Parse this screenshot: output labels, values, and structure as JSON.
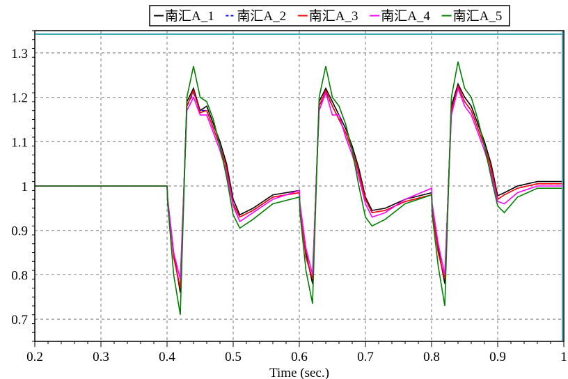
{
  "chart_data": {
    "type": "line",
    "title": "",
    "xlabel": "Time (sec.)",
    "ylabel": "",
    "xlim": [
      0.2,
      1.0
    ],
    "ylim": [
      0.65,
      1.35
    ],
    "xticks": [
      0.2,
      0.3,
      0.4,
      0.5,
      0.6,
      0.7,
      0.8,
      0.9,
      1.0
    ],
    "xtick_labels": [
      "0.2",
      "0.3",
      "0.4",
      "0.5",
      "0.6",
      "0.7",
      "0.8",
      "0.9",
      "1"
    ],
    "yticks": [
      0.7,
      0.8,
      0.9,
      1.0,
      1.1,
      1.2,
      1.3
    ],
    "ytick_labels": [
      "0.7",
      "0.8",
      "0.9",
      "1",
      "1.1",
      "1.2",
      "1.3"
    ],
    "grid": true,
    "legend_position": "top-right",
    "series": [
      {
        "name": "南汇A_1",
        "color": "#000000",
        "dash": "solid",
        "x": [
          0.2,
          0.4,
          0.401,
          0.41,
          0.42,
          0.43,
          0.44,
          0.45,
          0.46,
          0.47,
          0.48,
          0.49,
          0.5,
          0.51,
          0.53,
          0.56,
          0.6,
          0.601,
          0.61,
          0.62,
          0.63,
          0.64,
          0.65,
          0.66,
          0.67,
          0.68,
          0.69,
          0.7,
          0.71,
          0.73,
          0.76,
          0.8,
          0.801,
          0.81,
          0.82,
          0.83,
          0.84,
          0.85,
          0.86,
          0.87,
          0.88,
          0.89,
          0.9,
          0.91,
          0.93,
          0.96,
          1.0
        ],
        "y": [
          1.0,
          1.0,
          0.97,
          0.85,
          0.76,
          1.19,
          1.22,
          1.17,
          1.18,
          1.14,
          1.1,
          1.05,
          0.97,
          0.935,
          0.95,
          0.98,
          0.99,
          0.96,
          0.85,
          0.78,
          1.19,
          1.22,
          1.19,
          1.16,
          1.13,
          1.09,
          1.04,
          0.975,
          0.945,
          0.95,
          0.97,
          0.985,
          0.95,
          0.86,
          0.78,
          1.18,
          1.23,
          1.2,
          1.18,
          1.14,
          1.1,
          1.05,
          0.978,
          0.985,
          1.0,
          1.01,
          1.01
        ]
      },
      {
        "name": "南汇A_2",
        "color": "#0000ff",
        "dash": "dashed",
        "x": [
          0.2,
          0.4,
          0.401,
          0.41,
          0.42,
          0.43,
          0.44,
          0.45,
          0.46,
          0.47,
          0.48,
          0.49,
          0.5,
          0.51,
          0.53,
          0.56,
          0.6,
          0.601,
          0.61,
          0.62,
          0.63,
          0.64,
          0.65,
          0.66,
          0.67,
          0.68,
          0.69,
          0.7,
          0.71,
          0.73,
          0.76,
          0.8,
          0.801,
          0.81,
          0.82,
          0.83,
          0.84,
          0.85,
          0.86,
          0.87,
          0.88,
          0.89,
          0.9,
          0.91,
          0.93,
          0.96,
          1.0
        ],
        "y": [
          1.0,
          1.0,
          0.97,
          0.84,
          0.77,
          1.18,
          1.21,
          1.17,
          1.17,
          1.13,
          1.09,
          1.04,
          0.96,
          0.93,
          0.945,
          0.975,
          0.985,
          0.955,
          0.84,
          0.79,
          1.18,
          1.21,
          1.18,
          1.15,
          1.12,
          1.08,
          1.03,
          0.97,
          0.94,
          0.945,
          0.965,
          0.98,
          0.945,
          0.85,
          0.79,
          1.17,
          1.22,
          1.19,
          1.17,
          1.13,
          1.09,
          1.04,
          0.97,
          0.98,
          0.995,
          1.005,
          1.005
        ]
      },
      {
        "name": "南汇A_3",
        "color": "#ff0000",
        "dash": "solid",
        "x": [
          0.2,
          0.4,
          0.401,
          0.41,
          0.42,
          0.43,
          0.44,
          0.45,
          0.46,
          0.47,
          0.48,
          0.49,
          0.5,
          0.51,
          0.53,
          0.56,
          0.6,
          0.601,
          0.61,
          0.62,
          0.63,
          0.64,
          0.65,
          0.66,
          0.67,
          0.68,
          0.69,
          0.7,
          0.71,
          0.73,
          0.76,
          0.8,
          0.801,
          0.81,
          0.82,
          0.83,
          0.84,
          0.85,
          0.86,
          0.87,
          0.88,
          0.89,
          0.9,
          0.91,
          0.93,
          0.96,
          1.0
        ],
        "y": [
          1.0,
          1.0,
          0.97,
          0.84,
          0.77,
          1.18,
          1.215,
          1.165,
          1.17,
          1.13,
          1.09,
          1.04,
          0.96,
          0.93,
          0.945,
          0.975,
          0.985,
          0.955,
          0.84,
          0.79,
          1.18,
          1.215,
          1.18,
          1.15,
          1.12,
          1.08,
          1.03,
          0.97,
          0.94,
          0.945,
          0.965,
          0.98,
          0.945,
          0.85,
          0.79,
          1.17,
          1.225,
          1.19,
          1.17,
          1.13,
          1.09,
          1.04,
          0.97,
          0.98,
          0.995,
          1.005,
          1.005
        ]
      },
      {
        "name": "南汇A_4",
        "color": "#ff00ff",
        "dash": "solid",
        "x": [
          0.2,
          0.4,
          0.401,
          0.41,
          0.42,
          0.43,
          0.44,
          0.45,
          0.46,
          0.47,
          0.48,
          0.49,
          0.5,
          0.51,
          0.53,
          0.56,
          0.6,
          0.601,
          0.61,
          0.62,
          0.63,
          0.64,
          0.65,
          0.66,
          0.67,
          0.68,
          0.69,
          0.7,
          0.71,
          0.73,
          0.76,
          0.8,
          0.801,
          0.81,
          0.82,
          0.83,
          0.84,
          0.85,
          0.86,
          0.87,
          0.88,
          0.89,
          0.9,
          0.91,
          0.93,
          0.96,
          1.0
        ],
        "y": [
          1.0,
          1.0,
          0.97,
          0.85,
          0.79,
          1.17,
          1.2,
          1.16,
          1.16,
          1.12,
          1.08,
          1.03,
          0.955,
          0.92,
          0.94,
          0.97,
          0.99,
          0.96,
          0.86,
          0.8,
          1.17,
          1.21,
          1.16,
          1.16,
          1.11,
          1.07,
          1.02,
          0.96,
          0.93,
          0.94,
          0.97,
          0.995,
          0.96,
          0.87,
          0.8,
          1.16,
          1.22,
          1.18,
          1.16,
          1.12,
          1.08,
          1.03,
          0.965,
          0.96,
          0.985,
          1.0,
          1.0
        ]
      },
      {
        "name": "南汇A_5",
        "color": "#008000",
        "dash": "solid",
        "x": [
          0.2,
          0.4,
          0.401,
          0.41,
          0.42,
          0.43,
          0.44,
          0.45,
          0.46,
          0.47,
          0.48,
          0.49,
          0.5,
          0.51,
          0.53,
          0.56,
          0.6,
          0.601,
          0.61,
          0.62,
          0.63,
          0.64,
          0.65,
          0.66,
          0.67,
          0.68,
          0.69,
          0.7,
          0.71,
          0.73,
          0.76,
          0.8,
          0.801,
          0.81,
          0.82,
          0.83,
          0.84,
          0.85,
          0.86,
          0.87,
          0.88,
          0.89,
          0.9,
          0.91,
          0.93,
          0.96,
          1.0
        ],
        "y": [
          1.0,
          1.0,
          0.96,
          0.8,
          0.71,
          1.2,
          1.27,
          1.2,
          1.19,
          1.15,
          1.09,
          1.02,
          0.935,
          0.905,
          0.925,
          0.96,
          0.975,
          0.94,
          0.81,
          0.735,
          1.2,
          1.27,
          1.2,
          1.18,
          1.14,
          1.08,
          1.0,
          0.93,
          0.91,
          0.925,
          0.96,
          0.98,
          0.935,
          0.82,
          0.73,
          1.2,
          1.28,
          1.22,
          1.2,
          1.15,
          1.09,
          1.02,
          0.955,
          0.94,
          0.975,
          0.995,
          0.995
        ]
      }
    ]
  }
}
